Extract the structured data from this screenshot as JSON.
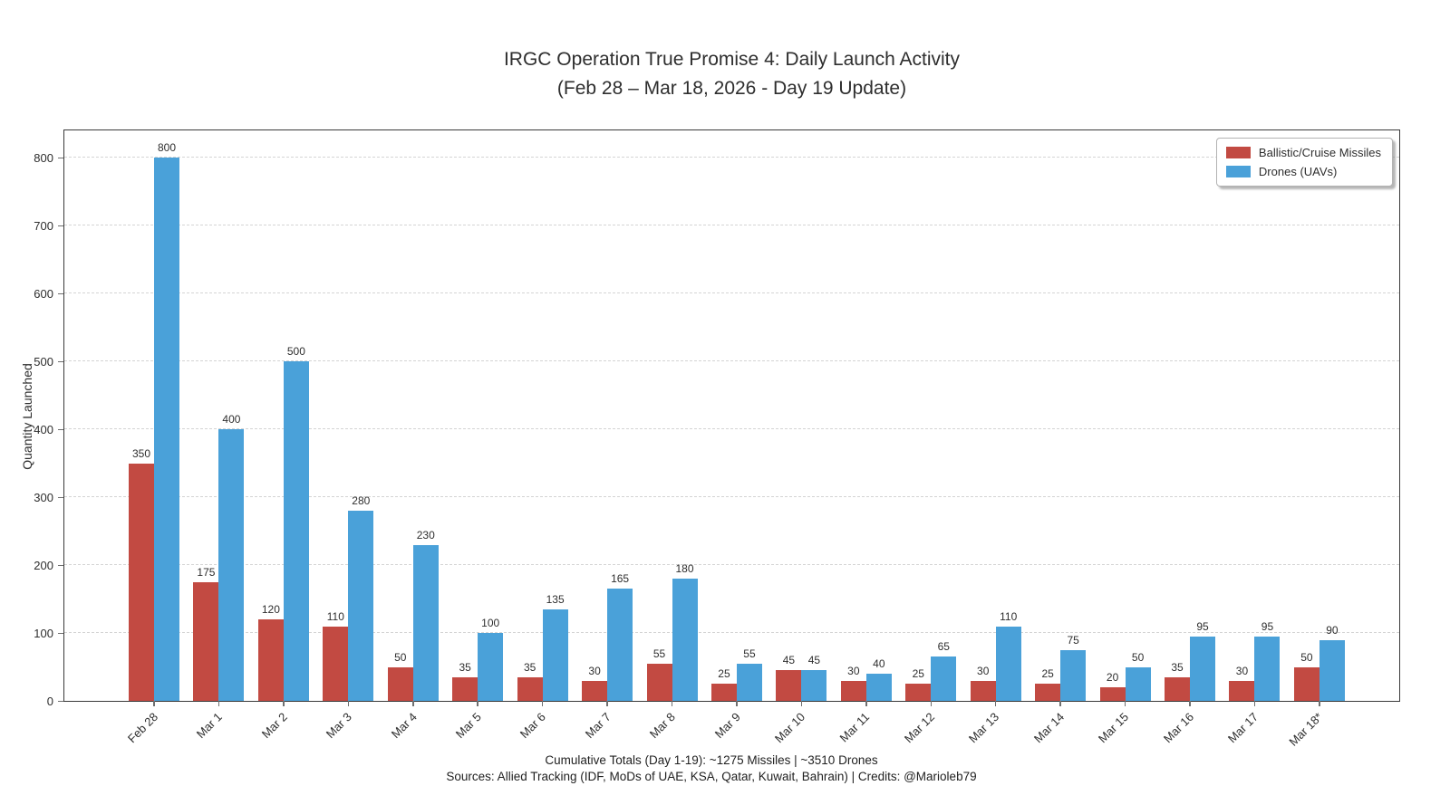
{
  "title": {
    "line1": "IRGC Operation True Promise 4: Daily Launch Activity",
    "line2": "(Feb 28 – Mar 18, 2026 - Day 19 Update)"
  },
  "axes": {
    "y_label": "Quantity Launched",
    "y_ticks": [
      0,
      100,
      200,
      300,
      400,
      500,
      600,
      700,
      800
    ],
    "y_max": 843
  },
  "legend": {
    "items": [
      {
        "label": "Ballistic/Cruise Missiles",
        "color": "#c24a42"
      },
      {
        "label": "Drones (UAVs)",
        "color": "#4aa1d9"
      }
    ]
  },
  "footer": {
    "line1": "Cumulative Totals (Day 1-19): ~1275 Missiles | ~3510 Drones",
    "line2": "Sources: Allied Tracking (IDF, MoDs of UAE, KSA, Qatar, Kuwait, Bahrain) | Credits: @Marioleb79"
  },
  "chart_data": {
    "type": "bar",
    "title": "IRGC Operation True Promise 4: Daily Launch Activity (Feb 28 – Mar 18, 2026 - Day 19 Update)",
    "categories": [
      "Feb 28",
      "Mar 1",
      "Mar 2",
      "Mar 3",
      "Mar 4",
      "Mar 5",
      "Mar 6",
      "Mar 7",
      "Mar 8",
      "Mar 9",
      "Mar 10",
      "Mar 11",
      "Mar 12",
      "Mar 13",
      "Mar 14",
      "Mar 15",
      "Mar 16",
      "Mar 17",
      "Mar 18*"
    ],
    "series": [
      {
        "name": "Ballistic/Cruise Missiles",
        "color": "#c24a42",
        "values": [
          350,
          175,
          120,
          110,
          50,
          35,
          35,
          30,
          55,
          25,
          45,
          30,
          25,
          30,
          25,
          20,
          35,
          30,
          50
        ]
      },
      {
        "name": "Drones (UAVs)",
        "color": "#4aa1d9",
        "values": [
          800,
          400,
          500,
          280,
          230,
          100,
          135,
          165,
          180,
          55,
          45,
          40,
          65,
          110,
          75,
          50,
          95,
          95,
          90
        ]
      }
    ],
    "xlabel": "",
    "ylabel": "Quantity Launched",
    "ylim": [
      0,
      843
    ],
    "y_tick_step": 100,
    "grid": "horizontal-dashed",
    "legend_position": "upper-right",
    "bar_value_labels": true
  }
}
